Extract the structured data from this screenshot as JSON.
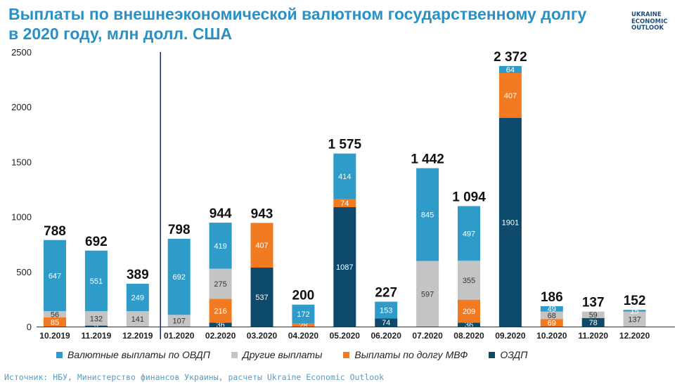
{
  "title": "Выплаты по внешнеэкономической валютном государственному долгу в 2020 году, млн долл. США",
  "logo": {
    "line1": "UKRAINE",
    "line2": "ECONOMIC",
    "line3": "OUTLOOK"
  },
  "source": "Источник: НБУ, Министерство финансов Украины, расчеты Ukraine Economic Outlook",
  "colors": {
    "ovdp": "#2f9bc8",
    "other": "#c4c4c4",
    "imf": "#f27b22",
    "ozdp": "#0e4a6b",
    "divider": "#1a2a5e"
  },
  "chart_data": {
    "type": "bar",
    "stacked": true,
    "categories": [
      "10.2019",
      "11.2019",
      "12.2019",
      "01.2020",
      "02.2020",
      "03.2020",
      "04.2020",
      "05.2020",
      "06.2020",
      "07.2020",
      "08.2020",
      "09.2020",
      "10.2020",
      "11.2020",
      "12.2020"
    ],
    "series": [
      {
        "name": "ОЗДП",
        "key": "ozdp",
        "values": [
          0,
          9,
          0,
          0,
          36,
          537,
          0,
          1087,
          74,
          0,
          36,
          1901,
          0,
          78,
          0
        ]
      },
      {
        "name": "Выплаты по долгу МВФ",
        "key": "imf",
        "values": [
          85,
          0,
          0,
          0,
          216,
          407,
          28,
          74,
          0,
          0,
          209,
          407,
          69,
          0,
          0
        ]
      },
      {
        "name": "Другие выплаты",
        "key": "other",
        "values": [
          56,
          132,
          141,
          107,
          275,
          0,
          0,
          0,
          0,
          597,
          355,
          0,
          68,
          59,
          137
        ]
      },
      {
        "name": "Валютные выплаты по ОВДП",
        "key": "ovdp",
        "values": [
          647,
          551,
          249,
          692,
          419,
          0,
          172,
          414,
          153,
          845,
          497,
          64,
          49,
          0,
          15
        ]
      }
    ],
    "segment_labels": [
      [
        "",
        "9",
        "",
        "",
        "36",
        "537",
        "",
        "1087",
        "74",
        "",
        "36",
        "1901",
        "",
        "78",
        ""
      ],
      [
        "85",
        "",
        "",
        "",
        "216",
        "407",
        "28",
        "74",
        "",
        "",
        "209",
        "407",
        "69",
        "",
        ""
      ],
      [
        "56",
        "132",
        "141",
        "107",
        "275",
        "",
        "",
        "",
        "",
        "597",
        "355",
        "",
        "68",
        "59",
        "137"
      ],
      [
        "647",
        "551",
        "249",
        "692",
        "419",
        "",
        "172",
        "414",
        "153",
        "845",
        "497",
        "64",
        "49",
        "",
        "15"
      ]
    ],
    "totals": [
      "788",
      "692",
      "389",
      "798",
      "944",
      "943",
      "200",
      "1 575",
      "227",
      "1 442",
      "1 094",
      "2 372",
      "186",
      "137",
      "152"
    ],
    "yticks": [
      "0",
      "500",
      "1000",
      "1500",
      "2000",
      "2500"
    ],
    "ytick_values": [
      0,
      500,
      1000,
      1500,
      2000,
      2500
    ],
    "ylim": [
      0,
      2500
    ],
    "divider_after_index": 2,
    "legend_order": [
      "ovdp",
      "other",
      "imf",
      "ozdp"
    ],
    "legend_position": "bottom",
    "grid": false
  }
}
